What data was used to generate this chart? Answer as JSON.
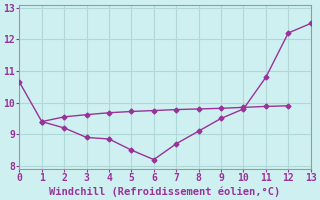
{
  "line1_x": [
    0,
    1,
    2,
    3,
    4,
    5,
    6,
    7,
    8,
    9,
    10,
    11,
    12,
    13
  ],
  "line1_y": [
    10.65,
    9.4,
    9.2,
    8.9,
    8.85,
    8.5,
    8.2,
    8.7,
    9.1,
    9.5,
    9.8,
    10.8,
    12.2,
    12.5
  ],
  "line2_x": [
    1,
    2,
    3,
    4,
    5,
    6,
    7,
    8,
    9,
    10,
    11,
    12
  ],
  "line2_y": [
    9.4,
    9.55,
    9.62,
    9.68,
    9.72,
    9.75,
    9.78,
    9.8,
    9.82,
    9.85,
    9.88,
    9.9
  ],
  "line_color": "#993399",
  "bg_color": "#cff0f0",
  "grid_color": "#b0d8d8",
  "xlabel": "Windchill (Refroidissement éolien,°C)",
  "xlim": [
    0,
    13
  ],
  "ylim": [
    7.9,
    13.1
  ],
  "xticks": [
    0,
    1,
    2,
    3,
    4,
    5,
    6,
    7,
    8,
    9,
    10,
    11,
    12,
    13
  ],
  "yticks": [
    8,
    9,
    10,
    11,
    12,
    13
  ],
  "tick_color": "#993399",
  "xlabel_color": "#993399",
  "xlabel_fontsize": 7.5,
  "tick_fontsize": 7
}
